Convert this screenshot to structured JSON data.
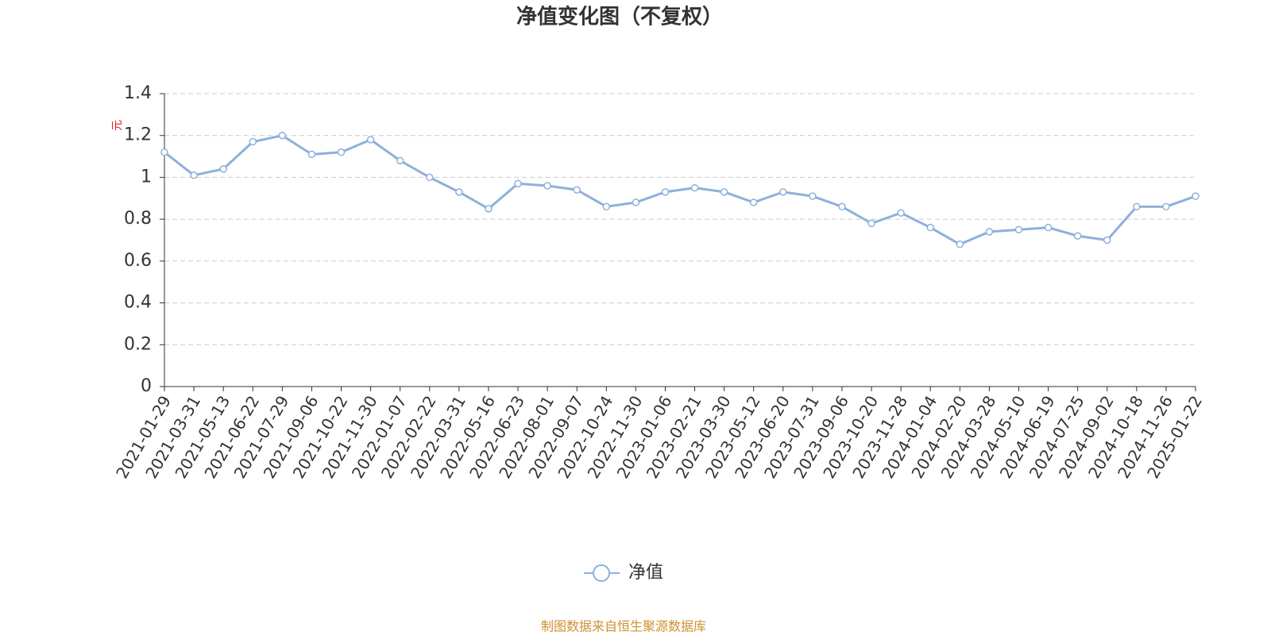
{
  "chart_data": {
    "type": "line",
    "title": "净值变化图（不复权）",
    "y_label": "元",
    "footer": "制图数据来自恒生聚源数据库",
    "x": [
      "2021-01-29",
      "2021-03-31",
      "2021-05-13",
      "2021-06-22",
      "2021-07-29",
      "2021-09-06",
      "2021-10-22",
      "2021-11-30",
      "2022-01-07",
      "2022-02-22",
      "2022-03-31",
      "2022-05-16",
      "2022-06-23",
      "2022-08-01",
      "2022-09-07",
      "2022-10-24",
      "2022-11-30",
      "2023-01-06",
      "2023-02-21",
      "2023-03-30",
      "2023-05-12",
      "2023-06-20",
      "2023-07-31",
      "2023-09-06",
      "2023-10-20",
      "2023-11-28",
      "2024-01-04",
      "2024-02-20",
      "2024-03-28",
      "2024-05-10",
      "2024-06-19",
      "2024-07-25",
      "2024-09-02",
      "2024-10-18",
      "2024-11-26",
      "2025-01-22"
    ],
    "series": [
      {
        "name": "净值",
        "color": "#8eb0dc",
        "values": [
          1.12,
          1.01,
          1.04,
          1.17,
          1.2,
          1.11,
          1.12,
          1.18,
          1.08,
          1.0,
          0.93,
          0.85,
          0.97,
          0.96,
          0.94,
          0.86,
          0.88,
          0.93,
          0.95,
          0.93,
          0.88,
          0.93,
          0.91,
          0.86,
          0.78,
          0.83,
          0.76,
          0.68,
          0.74,
          0.75,
          0.76,
          0.72,
          0.7,
          0.86,
          0.86,
          0.91
        ]
      }
    ],
    "ylim": [
      0,
      1.4
    ],
    "yticks": [
      0,
      0.2,
      0.4,
      0.6,
      0.8,
      1,
      1.2,
      1.4
    ],
    "grid": true
  }
}
